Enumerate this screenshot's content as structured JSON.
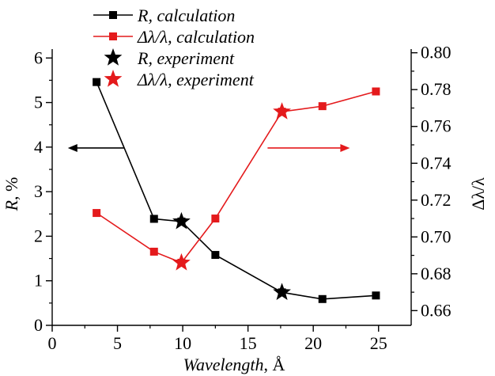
{
  "chart_data": {
    "type": "line",
    "xlabel": "Wavelength, Å",
    "ylabel_left": "R, %",
    "ylabel_right": "Δλ/λ",
    "xlim": [
      0,
      27.5
    ],
    "ylim_left": [
      0,
      6.2
    ],
    "ylim_right": [
      0.652,
      0.802
    ],
    "x_ticks": [
      "0",
      "5",
      "10",
      "15",
      "20",
      "25"
    ],
    "y_left_ticks": [
      "0",
      "1",
      "2",
      "3",
      "4",
      "5",
      "6"
    ],
    "y_right_ticks": [
      "0.66",
      "0.68",
      "0.70",
      "0.72",
      "0.74",
      "0.76",
      "0.78",
      "0.80"
    ],
    "legend_position": "top-left",
    "colors": {
      "r_series": "#000000",
      "dl_series": "#e41a1c"
    },
    "series": [
      {
        "name": "R, calculation",
        "axis": "left",
        "marker": "square",
        "line": true,
        "color": "#000000",
        "x": [
          3.4,
          7.8,
          9.9,
          12.5,
          17.6,
          20.7,
          24.8
        ],
        "y": [
          5.46,
          2.39,
          2.33,
          1.58,
          0.74,
          0.59,
          0.67
        ]
      },
      {
        "name": "Δλ/λ, calculation",
        "axis": "right",
        "marker": "square",
        "line": true,
        "color": "#e41a1c",
        "x": [
          3.4,
          7.8,
          9.9,
          12.5,
          17.6,
          20.7,
          24.8
        ],
        "y": [
          0.713,
          0.692,
          0.686,
          0.71,
          0.768,
          0.771,
          0.779
        ]
      },
      {
        "name": "R, experiment",
        "axis": "left",
        "marker": "star",
        "line": false,
        "color": "#000000",
        "x": [
          9.9,
          17.6
        ],
        "y": [
          2.33,
          0.74
        ]
      },
      {
        "name": "Δλ/λ, experiment",
        "axis": "right",
        "marker": "star",
        "line": false,
        "color": "#e41a1c",
        "x": [
          9.9,
          17.6
        ],
        "y": [
          0.686,
          0.768
        ]
      }
    ],
    "annotations": [
      {
        "type": "arrow",
        "direction": "left",
        "axis": "left",
        "color": "#000000"
      },
      {
        "type": "arrow",
        "direction": "right",
        "axis": "right",
        "color": "#e41a1c"
      }
    ]
  }
}
